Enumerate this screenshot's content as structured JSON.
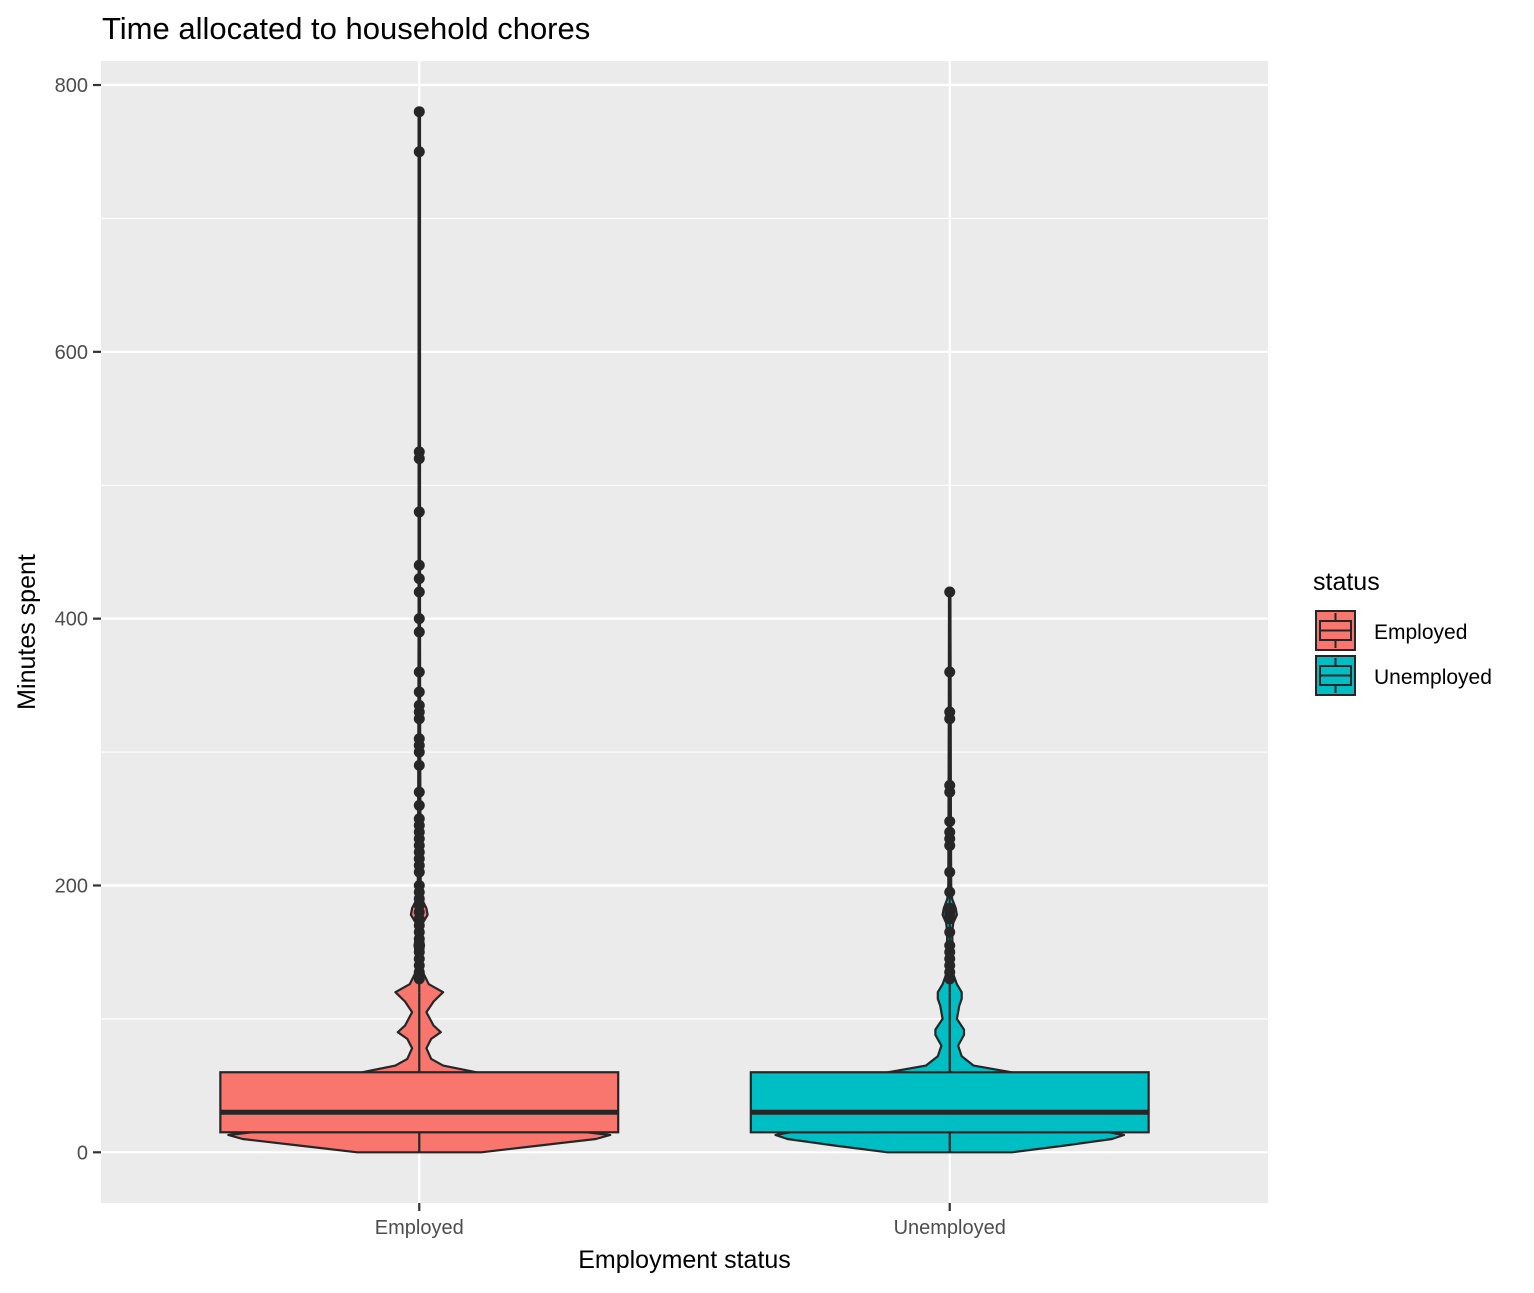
{
  "chart_data": {
    "type": "violin-box",
    "title": "Time allocated to household chores",
    "xlabel": "Employment status",
    "ylabel": "Minutes spent",
    "ylim": [
      -38,
      818
    ],
    "y_ticks": [
      0,
      200,
      400,
      600,
      800
    ],
    "y_tick_labels": [
      "0",
      "200",
      "400",
      "600",
      "800"
    ],
    "categories": [
      "Employed",
      "Unemployed"
    ],
    "grid": true,
    "legend": {
      "title": "status",
      "placement": "right",
      "entries": [
        "Employed",
        "Unemployed"
      ]
    },
    "series": [
      {
        "name": "Employed",
        "color": "#F8766D",
        "box": {
          "q1": 15,
          "median": 30,
          "q3": 60,
          "whisker_low": 0,
          "whisker_high": 120
        },
        "outliers": [
          780,
          750,
          525,
          520,
          480,
          440,
          430,
          420,
          400,
          390,
          360,
          345,
          335,
          330,
          325,
          310,
          305,
          300,
          290,
          270,
          260,
          250,
          245,
          240,
          235,
          230,
          225,
          220,
          215,
          210,
          200,
          195,
          190,
          185,
          180,
          175,
          170,
          165,
          160,
          155,
          150,
          145,
          140,
          135,
          130
        ],
        "density_halfwidth": [
          [
            0,
            0.26
          ],
          [
            5,
            0.5
          ],
          [
            10,
            0.74
          ],
          [
            13,
            0.8
          ],
          [
            18,
            0.56
          ],
          [
            25,
            0.46
          ],
          [
            35,
            0.37
          ],
          [
            45,
            0.3
          ],
          [
            55,
            0.27
          ],
          [
            60,
            0.24
          ],
          [
            65,
            0.1
          ],
          [
            70,
            0.05
          ],
          [
            78,
            0.03
          ],
          [
            85,
            0.05
          ],
          [
            90,
            0.09
          ],
          [
            95,
            0.06
          ],
          [
            105,
            0.03
          ],
          [
            113,
            0.06
          ],
          [
            120,
            0.1
          ],
          [
            126,
            0.04
          ],
          [
            135,
            0.015
          ],
          [
            145,
            0.01
          ],
          [
            155,
            0.02
          ],
          [
            165,
            0.01
          ],
          [
            172,
            0.015
          ],
          [
            178,
            0.035
          ],
          [
            183,
            0.03
          ],
          [
            190,
            0.01
          ],
          [
            200,
            0.006
          ],
          [
            240,
            0.005
          ],
          [
            300,
            0.004
          ],
          [
            400,
            0.003
          ],
          [
            520,
            0.003
          ],
          [
            650,
            0.003
          ],
          [
            780,
            0.003
          ]
        ]
      },
      {
        "name": "Unemployed",
        "color": "#00BFC4",
        "box": {
          "q1": 15,
          "median": 30,
          "q3": 60,
          "whisker_low": 0,
          "whisker_high": 120
        },
        "outliers": [
          420,
          360,
          330,
          325,
          275,
          270,
          248,
          240,
          235,
          230,
          210,
          195,
          183,
          180,
          178,
          175,
          165,
          155,
          150,
          145,
          140,
          135,
          130
        ],
        "density_halfwidth": [
          [
            0,
            0.26
          ],
          [
            5,
            0.48
          ],
          [
            10,
            0.68
          ],
          [
            13,
            0.73
          ],
          [
            18,
            0.58
          ],
          [
            25,
            0.47
          ],
          [
            35,
            0.39
          ],
          [
            45,
            0.33
          ],
          [
            55,
            0.28
          ],
          [
            60,
            0.26
          ],
          [
            65,
            0.1
          ],
          [
            72,
            0.05
          ],
          [
            80,
            0.035
          ],
          [
            88,
            0.06
          ],
          [
            92,
            0.06
          ],
          [
            100,
            0.03
          ],
          [
            110,
            0.04
          ],
          [
            115,
            0.05
          ],
          [
            120,
            0.05
          ],
          [
            126,
            0.03
          ],
          [
            135,
            0.012
          ],
          [
            145,
            0.01
          ],
          [
            155,
            0.012
          ],
          [
            165,
            0.01
          ],
          [
            172,
            0.015
          ],
          [
            178,
            0.03
          ],
          [
            183,
            0.025
          ],
          [
            190,
            0.01
          ],
          [
            200,
            0.006
          ],
          [
            250,
            0.005
          ],
          [
            330,
            0.004
          ],
          [
            420,
            0.003
          ]
        ]
      }
    ]
  }
}
